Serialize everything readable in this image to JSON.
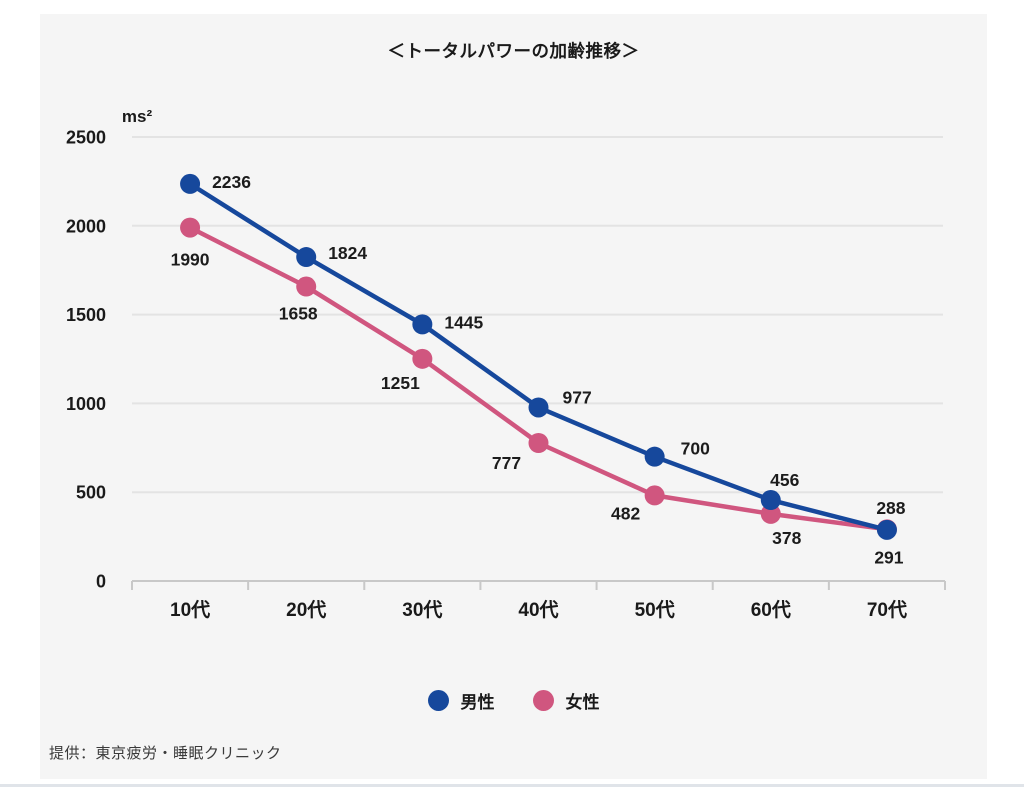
{
  "title": "＜トータルパワーの加齢推移＞",
  "footer_credit": "提供：東京疲労・睡眠クリニック",
  "legend": [
    {
      "label": "男性",
      "color": "#16489c"
    },
    {
      "label": "女性",
      "color": "#d0567f"
    }
  ],
  "colors": {
    "panel_background": "#f5f5f5",
    "gridline": "#e3e3e3",
    "axis": "#c8c8c8",
    "text": "#1a1a1a",
    "male_line": "#16489c",
    "female_line": "#d0567f"
  },
  "chart_data": {
    "type": "line",
    "title": "＜トータルパワーの加齢推移＞",
    "ylabel": "ms²",
    "xlabel": "",
    "categories": [
      "10代",
      "20代",
      "30代",
      "40代",
      "50代",
      "60代",
      "70代"
    ],
    "series": [
      {
        "name": "男性",
        "color": "#16489c",
        "values": [
          2236,
          1824,
          1445,
          977,
          700,
          456,
          288
        ]
      },
      {
        "name": "女性",
        "color": "#d0567f",
        "values": [
          1990,
          1658,
          1251,
          777,
          482,
          378,
          291
        ]
      }
    ],
    "ylim": [
      0,
      2500
    ],
    "yticks": [
      0,
      500,
      1000,
      1500,
      2000,
      2500
    ],
    "grid": true,
    "legend_position": "bottom",
    "markers": true
  }
}
